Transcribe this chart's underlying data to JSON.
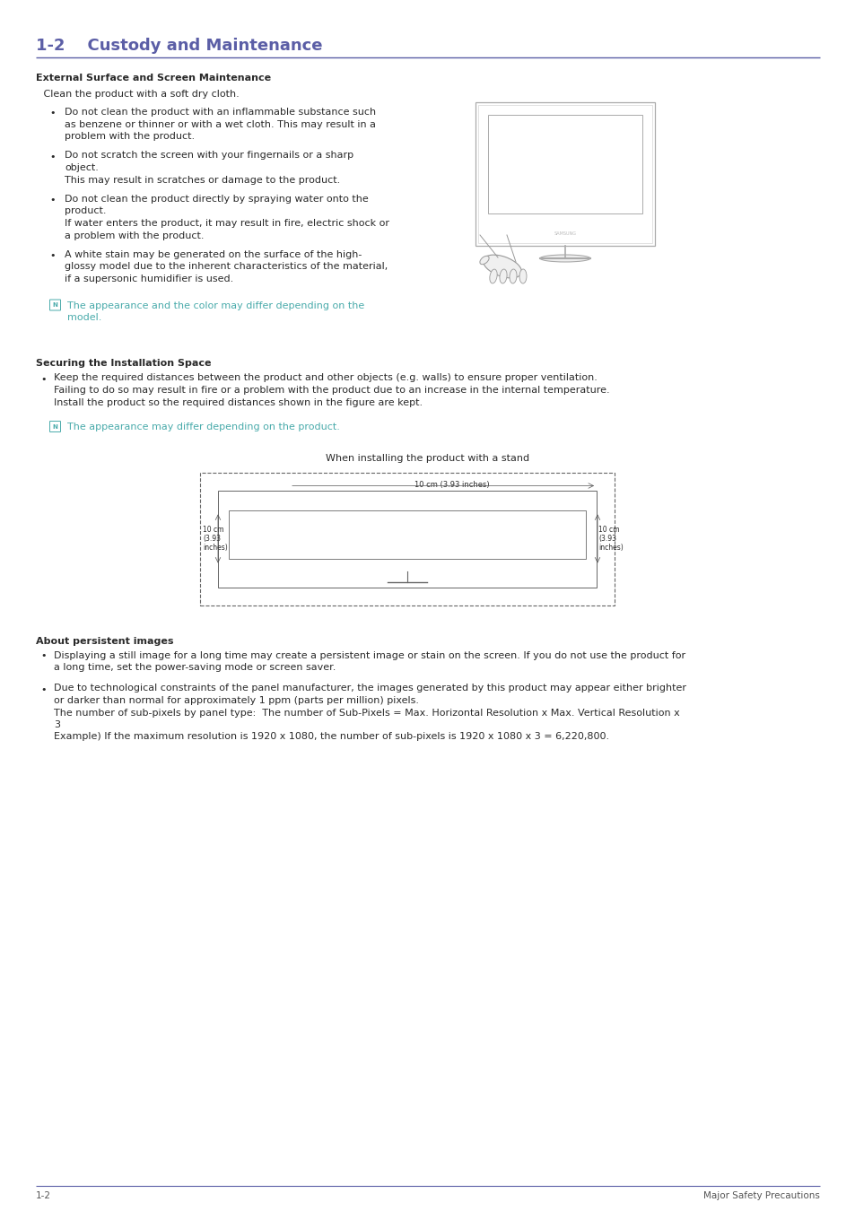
{
  "title": "1-2    Custody and Maintenance",
  "title_color": "#5b5ea6",
  "title_fontsize": 13,
  "header_line_color": "#5b5ea6",
  "bg_color": "#ffffff",
  "text_color": "#2a2a2a",
  "body_fontsize": 8.0,
  "note_color": "#4aabab",
  "section1_header": "External Surface and Screen Maintenance",
  "section1_intro": " Clean the product with a soft dry cloth.",
  "bullet1_lines": [
    "Do not clean the product with an inflammable substance such",
    "as benzene or thinner or with a wet cloth. This may result in a",
    "problem with the product."
  ],
  "bullet2_line1": "Do not scratch the screen with your fingernails or a sharp",
  "bullet2_line2": "object.",
  "bullet2_sub": "This may result in scratches or damage to the product.",
  "bullet3_line1": "Do not clean the product directly by spraying water onto the",
  "bullet3_line2": "product.",
  "bullet3_sub1": "If water enters the product, it may result in fire, electric shock or",
  "bullet3_sub2": "a problem with the product.",
  "bullet4_lines": [
    "A white stain may be generated on the surface of the high-",
    "glossy model due to the inherent characteristics of the material,",
    "if a supersonic humidifier is used."
  ],
  "note1_line1": "The appearance and the color may differ depending on the",
  "note1_line2": "model.",
  "section2_header": "Securing the Installation Space",
  "s2b1_line1": "Keep the required distances between the product and other objects (e.g. walls) to ensure proper ventilation.",
  "s2b1_line2": "Failing to do so may result in fire or a problem with the product due to an increase in the internal temperature.",
  "s2b1_line3": "Install the product so the required distances shown in the figure are kept.",
  "note2_line": "The appearance may differ depending on the product.",
  "stand_caption": "When installing the product with a stand",
  "top_dim": "10 cm (3.93 inches)",
  "left_dim": "10 cm\n(3.93\ninches)",
  "right_dim": "10 cm\n(3.93\ninches)",
  "section3_header": "About persistent images",
  "s3b1_line1": "Displaying a still image for a long time may create a persistent image or stain on the screen. If you do not use the product for",
  "s3b1_line2": "a long time, set the power-saving mode or screen saver.",
  "s3b2_line1": "Due to technological constraints of the panel manufacturer, the images generated by this product may appear either brighter",
  "s3b2_line2": "or darker than normal for approximately 1 ppm (parts per million) pixels.",
  "s3b2_line3": "The number of sub-pixels by panel type:  The number of Sub-Pixels = Max. Horizontal Resolution x Max. Vertical Resolution x",
  "s3b2_line4": "3",
  "s3b2_line5": "Example) If the maximum resolution is 1920 x 1080, the number of sub-pixels is 1920 x 1080 x 3 = 6,220,800.",
  "footer_left": "1-2",
  "footer_right": "Major Safety Precautions",
  "footer_line_color": "#5b5ea6",
  "footer_color": "#555555"
}
